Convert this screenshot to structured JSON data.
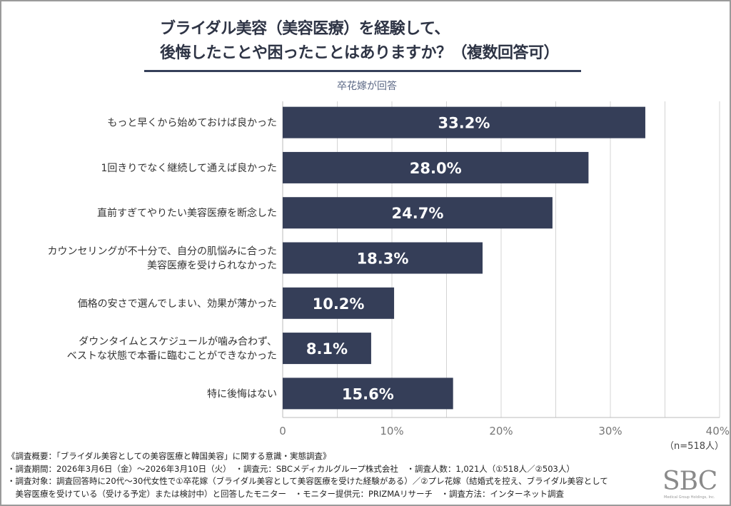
{
  "chart_data": {
    "type": "bar",
    "orientation": "horizontal",
    "title": [
      "ブライダル美容（美容医療）を経験して、",
      "後悔したことや困ったことはありますか？（複数回答可）"
    ],
    "subtitle": "卒花嫁が回答",
    "categories": [
      [
        "もっと早くから始めておけば良かった"
      ],
      [
        "1回きりでなく継続して通えば良かった"
      ],
      [
        "直前すぎてやりたい美容医療を断念した"
      ],
      [
        "カウンセリングが不十分で、自分の肌悩みに合った",
        "美容医療を受けられなかった"
      ],
      [
        "価格の安さで選んでしまい、効果が薄かった"
      ],
      [
        "ダウンタイムとスケジュールが噛み合わず、",
        "ベストな状態で本番に臨むことができなかった"
      ],
      [
        "特に後悔はない"
      ]
    ],
    "values": [
      33.2,
      28.0,
      24.7,
      18.3,
      10.2,
      8.1,
      15.6
    ],
    "data_labels": [
      "33.2%",
      "28.0%",
      "24.7%",
      "18.3%",
      "10.2%",
      "8.1%",
      "15.6%"
    ],
    "xlim": [
      0,
      40
    ],
    "ticks": [
      0,
      10,
      20,
      30,
      40
    ],
    "tick_labels": [
      "0",
      "10%",
      "20%",
      "30%",
      "40%"
    ],
    "grid": true,
    "grid_step": 5,
    "bar_color": "#353e58",
    "sample_note": "（n=518人）"
  },
  "footer": {
    "lines": [
      "《調査概要：「ブライダル美容としての美容医療と韓国美容」に関する意識・実態調査》",
      "・調査期間：2026年3月6日（金）～2026年3月10日（火）　・調査元：SBCメディカルグループ株式会社　・調査人数：1,021人（①518人／②503人）",
      "・調査対象：調査回答時に20代～30代女性で①卒花嫁（ブライダル美容として美容医療を受けた経験がある）／②プレ花嫁（結婚式を控え、ブライダル美容として",
      "　美容医療を受けている（受ける予定）または検討中）と回答したモニター　・モニター提供元：PRIZMAリサーチ　・調査方法：インターネット調査"
    ],
    "logo": "SBC",
    "logo_sub": "Medical Group Holdings, Inc."
  }
}
